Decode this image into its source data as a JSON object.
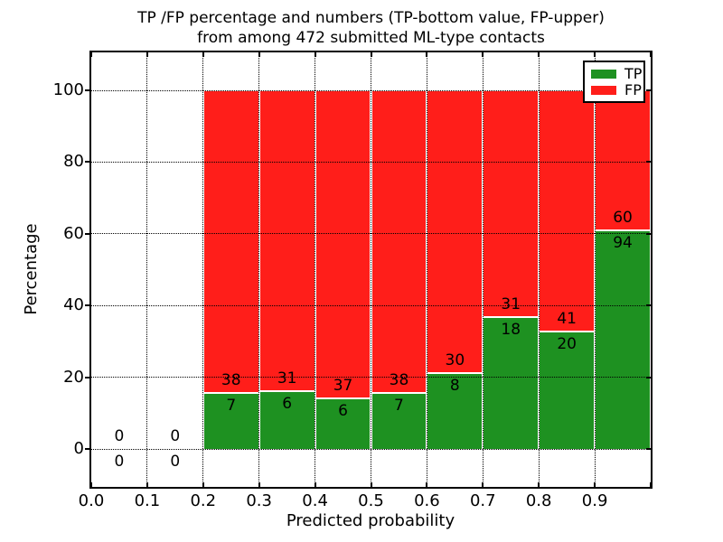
{
  "title": {
    "line1": "TP /FP percentage and numbers (TP-bottom value, FP-upper)",
    "line2": "from among 472 submitted ML-type contacts"
  },
  "axes": {
    "xlabel": "Predicted probability",
    "ylabel": "Percentage",
    "xticks": [
      "0.0",
      "0.1",
      "0.2",
      "0.3",
      "0.4",
      "0.5",
      "0.6",
      "0.7",
      "0.8",
      "0.9"
    ],
    "yticks": [
      "0",
      "20",
      "40",
      "60",
      "80",
      "100"
    ],
    "ytick_values": [
      0,
      20,
      40,
      60,
      80,
      100
    ]
  },
  "legend": {
    "items": [
      {
        "label": "TP",
        "color": "#1e9121"
      },
      {
        "label": "FP",
        "color": "#ff1e1a"
      }
    ]
  },
  "colors": {
    "tp": "#1e9121",
    "fp": "#ff1e1a",
    "grid": "#000000",
    "text": "#000000",
    "bar_edge": "#ffffff"
  },
  "chart_data": {
    "type": "bar",
    "stacked": true,
    "normalized_to_percent": 100,
    "title": "TP /FP percentage and numbers (TP-bottom value, FP-upper) from among 472 submitted ML-type contacts",
    "xlabel": "Predicted probability",
    "ylabel": "Percentage",
    "xlim": [
      0.0,
      1.0
    ],
    "ylim": [
      -10.6,
      110.6
    ],
    "grid": "dotted black, drawn above bars",
    "legend_position": "upper right",
    "total_contacts": 472,
    "bin_width": 0.1,
    "series": [
      {
        "name": "TP",
        "position": "bottom",
        "color": "#1e9121"
      },
      {
        "name": "FP",
        "position": "top",
        "color": "#ff1e1a"
      }
    ],
    "bins": [
      {
        "x_start": 0.0,
        "x_end": 0.1,
        "tp_count": 0,
        "fp_count": 0,
        "has_bar": false
      },
      {
        "x_start": 0.1,
        "x_end": 0.2,
        "tp_count": 0,
        "fp_count": 0,
        "has_bar": false
      },
      {
        "x_start": 0.2,
        "x_end": 0.3,
        "tp_count": 7,
        "fp_count": 38,
        "tp_pct": 15.6,
        "fp_pct": 84.4,
        "has_bar": true
      },
      {
        "x_start": 0.3,
        "x_end": 0.4,
        "tp_count": 6,
        "fp_count": 31,
        "tp_pct": 16.2,
        "fp_pct": 83.8,
        "has_bar": true
      },
      {
        "x_start": 0.4,
        "x_end": 0.5,
        "tp_count": 6,
        "fp_count": 37,
        "tp_pct": 14.0,
        "fp_pct": 86.0,
        "has_bar": true
      },
      {
        "x_start": 0.5,
        "x_end": 0.6,
        "tp_count": 7,
        "fp_count": 38,
        "tp_pct": 15.6,
        "fp_pct": 84.4,
        "has_bar": true
      },
      {
        "x_start": 0.6,
        "x_end": 0.7,
        "tp_count": 8,
        "fp_count": 30,
        "tp_pct": 21.1,
        "fp_pct": 78.9,
        "has_bar": true
      },
      {
        "x_start": 0.7,
        "x_end": 0.8,
        "tp_count": 18,
        "fp_count": 31,
        "tp_pct": 36.7,
        "fp_pct": 63.3,
        "has_bar": true
      },
      {
        "x_start": 0.8,
        "x_end": 0.9,
        "tp_count": 20,
        "fp_count": 41,
        "tp_pct": 32.8,
        "fp_pct": 67.2,
        "has_bar": true
      },
      {
        "x_start": 0.9,
        "x_end": 1.0,
        "tp_count": 94,
        "fp_count": 60,
        "tp_pct": 61.0,
        "fp_pct": 39.0,
        "has_bar": true
      }
    ]
  }
}
